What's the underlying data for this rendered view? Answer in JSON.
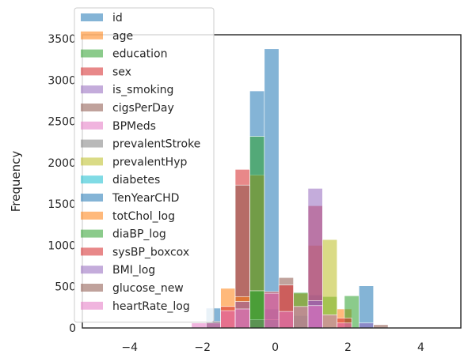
{
  "chart_data": {
    "type": "histogram",
    "ylabel": "Frequency",
    "xlim": [
      -5.3,
      5.1
    ],
    "ylim": [
      0,
      3550
    ],
    "xticks": [
      -4,
      -2,
      0,
      2,
      4
    ],
    "yticks": [
      0,
      500,
      1000,
      1500,
      2000,
      2500,
      3000,
      3500
    ],
    "xtick_labels": [
      "−4",
      "−2",
      "0",
      "2",
      "4"
    ],
    "ytick_labels": [
      "0",
      "500",
      "1000",
      "1500",
      "2000",
      "2500",
      "3000",
      "3500"
    ],
    "bin_width": 0.4,
    "grid": false,
    "alpha": 0.55,
    "legend_position": "upper-left",
    "series": [
      {
        "name": "id",
        "color": "#1f77b4",
        "bars": [
          [
            -0.7,
            2870
          ],
          [
            -0.3,
            230
          ],
          [
            -0.3,
            3380
          ],
          [
            0.9,
            400
          ],
          [
            2.3,
            510
          ]
        ]
      },
      {
        "name": "age",
        "color": "#ff7f0e",
        "bars": [
          [
            -1.5,
            480
          ],
          [
            -0.7,
            1850
          ],
          [
            0.9,
            1000
          ],
          [
            1.7,
            230
          ]
        ]
      },
      {
        "name": "education",
        "color": "#2ca02c",
        "bars": [
          [
            -0.7,
            2320
          ],
          [
            1.3,
            380
          ],
          [
            1.9,
            390
          ]
        ]
      },
      {
        "name": "sex",
        "color": "#d62728",
        "bars": [
          [
            -1.1,
            1920
          ],
          [
            0.9,
            1480
          ]
        ]
      },
      {
        "name": "is_smoking",
        "color": "#9467bd",
        "bars": [
          [
            0.9,
            1690
          ]
        ]
      },
      {
        "name": "cigsPerDay",
        "color": "#8c564b",
        "bars": [
          [
            -1.1,
            1730
          ],
          [
            0.1,
            610
          ]
        ]
      },
      {
        "name": "BPMeds",
        "color": "#e377c2",
        "bars": [
          [
            -0.7,
            100
          ]
        ]
      },
      {
        "name": "prevalentStroke",
        "color": "#7f7f7f",
        "bars": [
          [
            -0.7,
            100
          ]
        ]
      },
      {
        "name": "prevalentHyp",
        "color": "#bcbd22",
        "bars": [
          [
            1.3,
            1070
          ]
        ]
      },
      {
        "name": "diabetes",
        "color": "#17becf",
        "bars": [
          [
            -0.3,
            100
          ]
        ]
      },
      {
        "name": "TenYearCHD",
        "color": "#1f77b4",
        "bars": [
          [
            -1.9,
            240
          ],
          [
            0.5,
            150
          ]
        ]
      },
      {
        "name": "totChol_log",
        "color": "#ff7f0e",
        "bars": [
          [
            -1.1,
            380
          ],
          [
            0.5,
            420
          ]
        ]
      },
      {
        "name": "diaBP_log",
        "color": "#2ca02c",
        "bars": [
          [
            -0.7,
            450
          ],
          [
            0.5,
            430
          ]
        ]
      },
      {
        "name": "sysBP_boxcox",
        "color": "#d62728",
        "bars": [
          [
            -1.5,
            260
          ],
          [
            -0.3,
            440
          ],
          [
            0.1,
            520
          ],
          [
            1.7,
            120
          ]
        ]
      },
      {
        "name": "BMI_log",
        "color": "#9467bd",
        "bars": [
          [
            -1.1,
            320
          ],
          [
            0.9,
            330
          ],
          [
            2.3,
            60
          ]
        ]
      },
      {
        "name": "glucose_new",
        "color": "#8c564b",
        "bars": [
          [
            -1.9,
            80
          ],
          [
            2.7,
            40
          ]
        ]
      },
      {
        "name": "heartRate_log",
        "color": "#e377c2",
        "bars": [
          [
            -2.3,
            60
          ],
          [
            -1.9,
            60
          ],
          [
            -1.5,
            210
          ],
          [
            -1.1,
            230
          ],
          [
            -0.3,
            420
          ],
          [
            0.1,
            200
          ],
          [
            0.5,
            260
          ],
          [
            0.9,
            270
          ],
          [
            1.3,
            160
          ],
          [
            1.7,
            60
          ]
        ]
      }
    ]
  }
}
